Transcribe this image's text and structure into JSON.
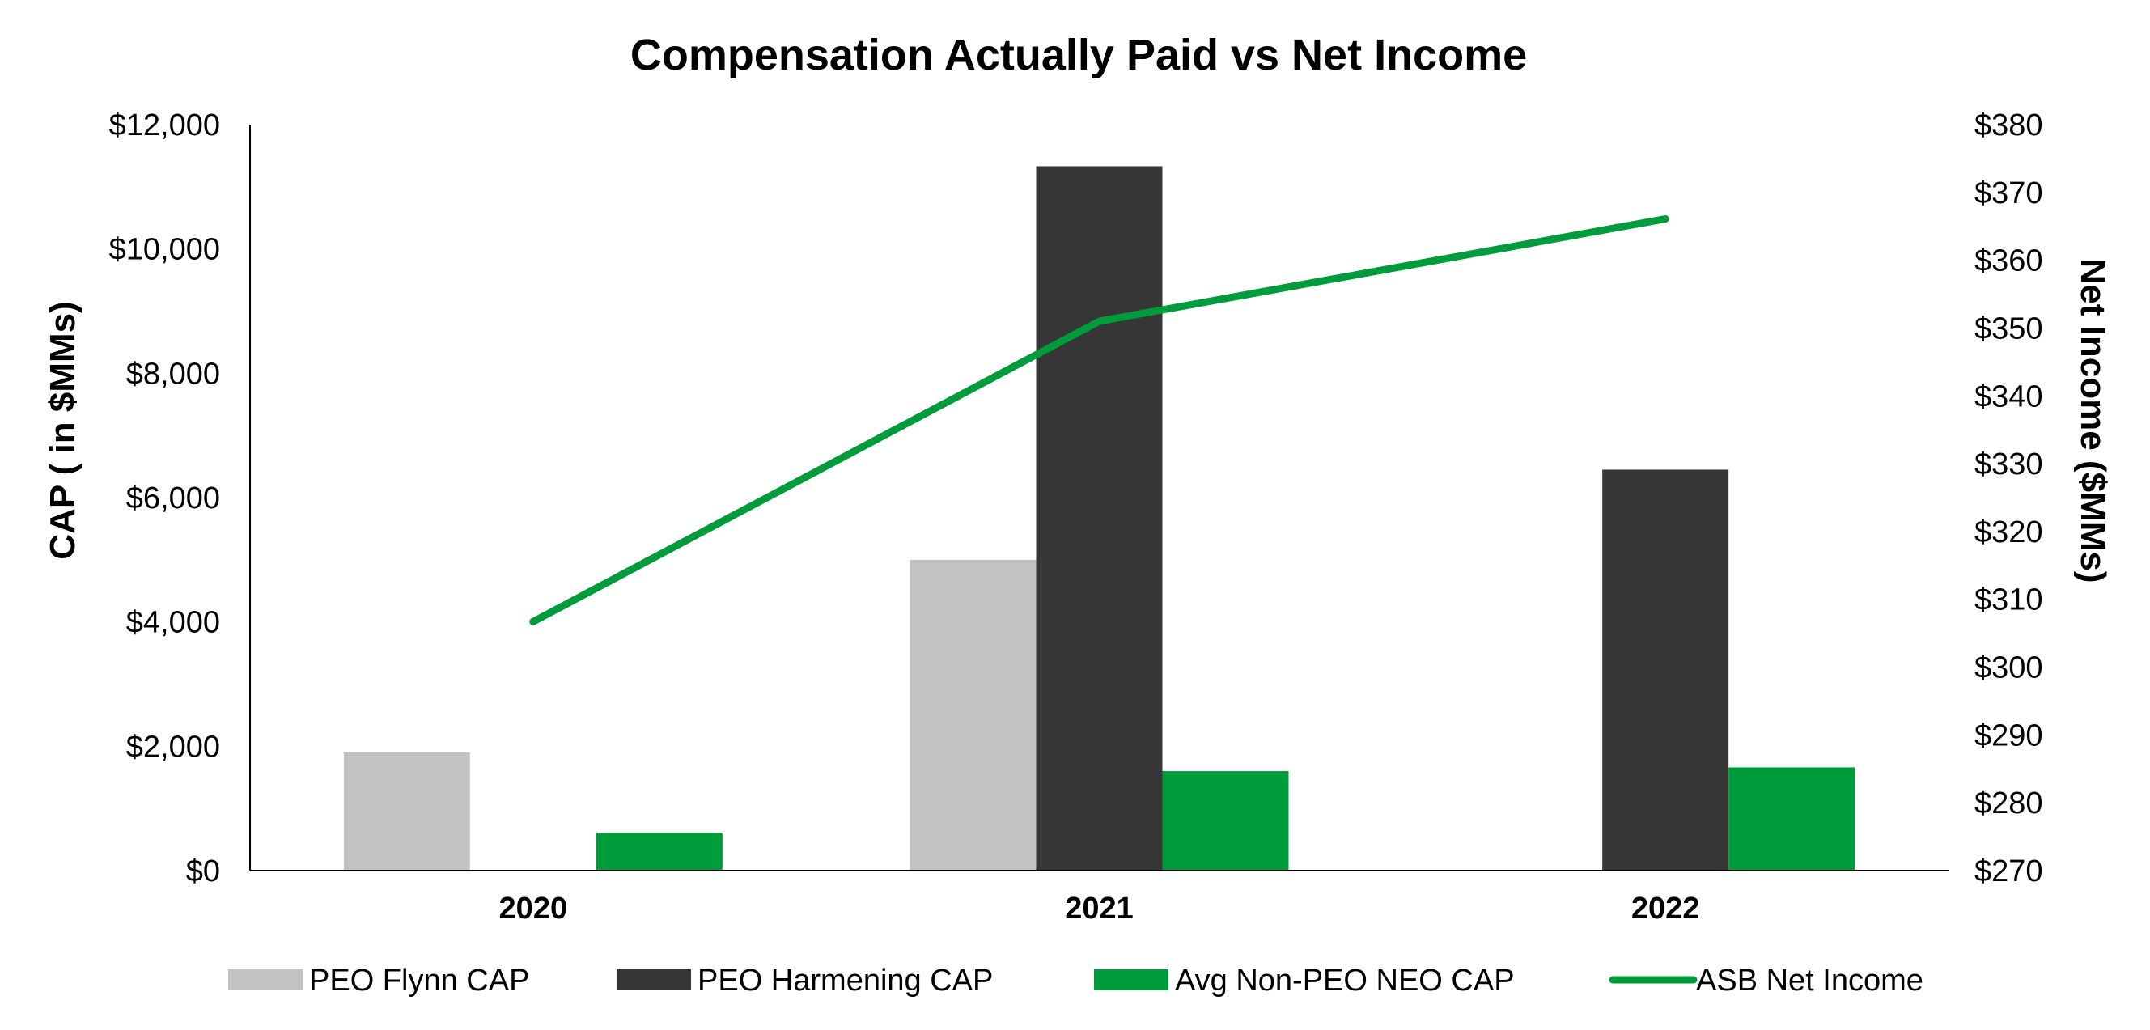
{
  "chart_data": {
    "type": "bar",
    "title": "Compensation Actually Paid vs Net Income",
    "categories": [
      "2020",
      "2021",
      "2022"
    ],
    "ylabel": "CAP ( in $MMs)",
    "y2label": "Net Income ($MMs)",
    "ylim": [
      0,
      12000
    ],
    "y2lim": [
      270,
      380
    ],
    "yticks": [
      "$0",
      "$2,000",
      "$4,000",
      "$6,000",
      "$8,000",
      "$10,000",
      "$12,000"
    ],
    "y2ticks": [
      "$270",
      "$280",
      "$290",
      "$300",
      "$310",
      "$320",
      "$330",
      "$340",
      "$350",
      "$360",
      "$370",
      "$380"
    ],
    "ytick_values": [
      0,
      2000,
      4000,
      6000,
      8000,
      10000,
      12000
    ],
    "y2tick_values": [
      270,
      280,
      290,
      300,
      310,
      320,
      330,
      340,
      350,
      360,
      370,
      380
    ],
    "grid": false,
    "legend_position": "bottom",
    "series": [
      {
        "name": "PEO Flynn CAP",
        "kind": "bar",
        "axis": "left",
        "color": "#c2c2c2",
        "values": [
          1900,
          5000,
          null
        ]
      },
      {
        "name": "PEO Harmening CAP",
        "kind": "bar",
        "axis": "left",
        "color": "#363636",
        "values": [
          null,
          11330,
          6450
        ]
      },
      {
        "name": "Avg Non-PEO NEO CAP",
        "kind": "bar",
        "axis": "left",
        "color": "#009b3a",
        "values": [
          610,
          1600,
          1660
        ]
      },
      {
        "name": "ASB Net Income",
        "kind": "line",
        "axis": "right",
        "color": "#009b3a",
        "values": [
          306.7,
          351.0,
          366.1
        ]
      }
    ]
  }
}
